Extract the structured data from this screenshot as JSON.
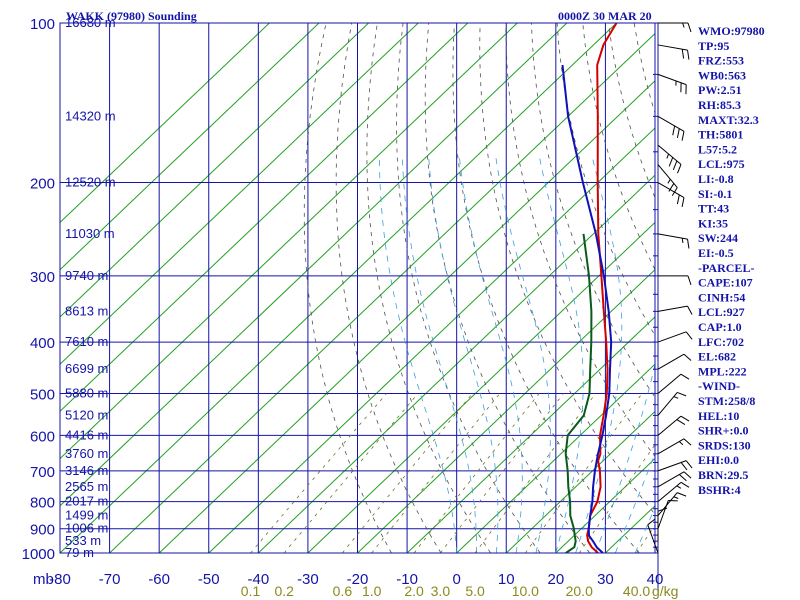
{
  "header": {
    "title": "WAKK (97980) Sounding",
    "time": "0000Z 30 MAR 20"
  },
  "axes": {
    "pressure_unit_label": "mb",
    "mixing_ratio_unit_label": "g/kg"
  },
  "indices": [
    "WMO:97980",
    "TP:95",
    "FRZ:553",
    "WB0:563",
    "PW:2.51",
    "RH:85.3",
    "MAXT:32.3",
    "TH:5801",
    "L57:5.2",
    "LCL:975",
    "LI:-0.8",
    "SI:-0.1",
    "TT:43",
    "KI:35",
    "SW:244",
    "EI:-0.5",
    "-PARCEL-",
    "CAPE:107",
    "CINH:54",
    "LCL:927",
    "CAP:1.0",
    "LFC:702",
    "EL:682",
    "MPL:222",
    "-WIND-",
    "STM:258/8",
    "HEL:10",
    "SHR+:0.0",
    "SRDS:130",
    "EHI:0.0",
    "BRN:29.5",
    "BSHR:4"
  ],
  "chart_data": {
    "type": "skew-t",
    "title": "WAKK (97980) Sounding",
    "ylabel": "mb",
    "xlim": [
      -80,
      40
    ],
    "ylim": [
      1000,
      100
    ],
    "y_scale": "log",
    "x_ticks": [
      -80,
      -70,
      -60,
      -50,
      -40,
      -30,
      -20,
      -10,
      0,
      10,
      20,
      30,
      40
    ],
    "x_tick_labels": [
      "-80",
      "-70",
      "-60",
      "-50",
      "-40",
      "-30",
      "-20",
      "-10",
      "0",
      "10",
      "20",
      "30",
      "40"
    ],
    "pressure_ticks": [
      100,
      200,
      300,
      400,
      500,
      600,
      700,
      800,
      900,
      1000
    ],
    "height_labels": [
      {
        "p": 100,
        "label": "16680 m"
      },
      {
        "p": 150,
        "label": "14320 m"
      },
      {
        "p": 200,
        "label": "12520 m"
      },
      {
        "p": 250,
        "label": "11030 m"
      },
      {
        "p": 300,
        "label": "9740 m"
      },
      {
        "p": 350,
        "label": "8613 m"
      },
      {
        "p": 400,
        "label": "7610 m"
      },
      {
        "p": 450,
        "label": "6699 m"
      },
      {
        "p": 500,
        "label": "5880 m"
      },
      {
        "p": 550,
        "label": "5120 m"
      },
      {
        "p": 600,
        "label": "4416 m"
      },
      {
        "p": 650,
        "label": "3760 m"
      },
      {
        "p": 700,
        "label": "3146 m"
      },
      {
        "p": 750,
        "label": "2565 m"
      },
      {
        "p": 800,
        "label": "2017 m"
      },
      {
        "p": 850,
        "label": "1499 m"
      },
      {
        "p": 900,
        "label": "1006 m"
      },
      {
        "p": 950,
        "label": "533 m"
      },
      {
        "p": 1000,
        "label": "79 m"
      }
    ],
    "mixing_ratio_labels": [
      "0.1",
      "0.2",
      "0.6",
      "1.0",
      "2.0",
      "3.0",
      "5.0",
      "10.0",
      "20.0",
      "40.0"
    ],
    "isotherm_min": -150,
    "isotherm_max": 40,
    "isotherm_step": 10,
    "dry_adiabats_theta_K": [
      260,
      270,
      280,
      290,
      300,
      310,
      320,
      330,
      340,
      350,
      360,
      370,
      380,
      390,
      400,
      410,
      420,
      430,
      440,
      450,
      460,
      470,
      480,
      490,
      500,
      510,
      520
    ],
    "moist_adiabats_start_C": [
      0,
      4,
      8,
      12,
      16,
      20,
      24,
      28,
      32,
      36
    ],
    "mixing_ratio_values_gkg": [
      0.1,
      0.2,
      0.6,
      1.0,
      2.0,
      3.0,
      5.0,
      10.0,
      20.0,
      40.0
    ],
    "series": [
      {
        "name": "temperature",
        "color": "#d40000",
        "points": [
          {
            "p": 1000,
            "t": 28.5
          },
          {
            "p": 975,
            "t": 26.0
          },
          {
            "p": 950,
            "t": 24.0
          },
          {
            "p": 925,
            "t": 22.5
          },
          {
            "p": 900,
            "t": 21.5
          },
          {
            "p": 850,
            "t": 19.0
          },
          {
            "p": 800,
            "t": 17.5
          },
          {
            "p": 750,
            "t": 15.0
          },
          {
            "p": 700,
            "t": 11.5
          },
          {
            "p": 670,
            "t": 9.0
          },
          {
            "p": 650,
            "t": 8.0
          },
          {
            "p": 600,
            "t": 4.0
          },
          {
            "p": 550,
            "t": 0.5
          },
          {
            "p": 500,
            "t": -3.5
          },
          {
            "p": 450,
            "t": -8.5
          },
          {
            "p": 400,
            "t": -14.5
          },
          {
            "p": 350,
            "t": -21.5
          },
          {
            "p": 300,
            "t": -29.5
          },
          {
            "p": 250,
            "t": -39.0
          },
          {
            "p": 200,
            "t": -50.0
          },
          {
            "p": 150,
            "t": -64.0
          },
          {
            "p": 120,
            "t": -75.0
          },
          {
            "p": 110,
            "t": -78.0
          },
          {
            "p": 100,
            "t": -80.0
          }
        ]
      },
      {
        "name": "dewpoint",
        "color": "#0a5a1a",
        "points": [
          {
            "p": 1000,
            "t": 22.0
          },
          {
            "p": 975,
            "t": 22.5
          },
          {
            "p": 950,
            "t": 21.5
          },
          {
            "p": 925,
            "t": 20.0
          },
          {
            "p": 900,
            "t": 18.5
          },
          {
            "p": 850,
            "t": 15.0
          },
          {
            "p": 800,
            "t": 12.0
          },
          {
            "p": 750,
            "t": 8.5
          },
          {
            "p": 700,
            "t": 5.0
          },
          {
            "p": 650,
            "t": 1.0
          },
          {
            "p": 600,
            "t": -2.5
          },
          {
            "p": 550,
            "t": -3.5
          },
          {
            "p": 500,
            "t": -7.0
          },
          {
            "p": 450,
            "t": -12.0
          },
          {
            "p": 400,
            "t": -17.5
          },
          {
            "p": 350,
            "t": -24.0
          },
          {
            "p": 300,
            "t": -32.0
          },
          {
            "p": 250,
            "t": -42.0
          }
        ]
      },
      {
        "name": "parcel",
        "color": "#1010b8",
        "points": [
          {
            "p": 1000,
            "t": 29.5
          },
          {
            "p": 975,
            "t": 27.0
          },
          {
            "p": 950,
            "t": 25.0
          },
          {
            "p": 927,
            "t": 23.0
          },
          {
            "p": 900,
            "t": 21.5
          },
          {
            "p": 850,
            "t": 19.0
          },
          {
            "p": 800,
            "t": 16.5
          },
          {
            "p": 750,
            "t": 13.5
          },
          {
            "p": 700,
            "t": 10.5
          },
          {
            "p": 650,
            "t": 7.5
          },
          {
            "p": 600,
            "t": 4.5
          },
          {
            "p": 550,
            "t": 1.0
          },
          {
            "p": 500,
            "t": -3.0
          },
          {
            "p": 450,
            "t": -8.0
          },
          {
            "p": 400,
            "t": -13.5
          },
          {
            "p": 350,
            "t": -20.5
          },
          {
            "p": 300,
            "t": -29.0
          },
          {
            "p": 250,
            "t": -39.5
          },
          {
            "p": 200,
            "t": -53.0
          },
          {
            "p": 150,
            "t": -70.0
          },
          {
            "p": 120,
            "t": -82.0
          }
        ]
      }
    ],
    "wind_barbs": [
      {
        "p": 100,
        "dir": 270,
        "spd": 15
      },
      {
        "p": 110,
        "dir": 280,
        "spd": 20
      },
      {
        "p": 125,
        "dir": 290,
        "spd": 25
      },
      {
        "p": 150,
        "dir": 300,
        "spd": 30
      },
      {
        "p": 170,
        "dir": 310,
        "spd": 35
      },
      {
        "p": 185,
        "dir": 320,
        "spd": 25
      },
      {
        "p": 200,
        "dir": 300,
        "spd": 20
      },
      {
        "p": 250,
        "dir": 280,
        "spd": 15
      },
      {
        "p": 300,
        "dir": 270,
        "spd": 10
      },
      {
        "p": 350,
        "dir": 260,
        "spd": 10
      },
      {
        "p": 400,
        "dir": 250,
        "spd": 10
      },
      {
        "p": 450,
        "dir": 240,
        "spd": 10
      },
      {
        "p": 500,
        "dir": 230,
        "spd": 10
      },
      {
        "p": 550,
        "dir": 220,
        "spd": 15
      },
      {
        "p": 600,
        "dir": 230,
        "spd": 20
      },
      {
        "p": 650,
        "dir": 240,
        "spd": 15
      },
      {
        "p": 700,
        "dir": 250,
        "spd": 20
      },
      {
        "p": 750,
        "dir": 240,
        "spd": 20
      },
      {
        "p": 800,
        "dir": 230,
        "spd": 15
      },
      {
        "p": 850,
        "dir": 220,
        "spd": 15
      },
      {
        "p": 900,
        "dir": 200,
        "spd": 10
      },
      {
        "p": 950,
        "dir": 180,
        "spd": 10
      },
      {
        "p": 1000,
        "dir": 160,
        "spd": 10
      }
    ]
  }
}
